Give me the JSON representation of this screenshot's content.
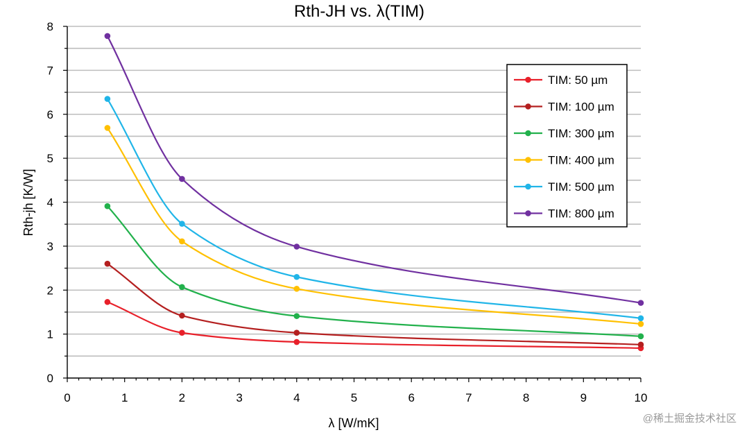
{
  "chart_data": {
    "type": "line",
    "title": "Rth-JH vs. λ(TIM)",
    "xlabel": "λ [W/mK]",
    "ylabel": "Rth-jh [K/W]",
    "xlim": [
      0,
      10
    ],
    "ylim": [
      0,
      8
    ],
    "xticks": [
      "0",
      "1",
      "2",
      "3",
      "4",
      "5",
      "6",
      "7",
      "8",
      "9",
      "10"
    ],
    "yticks": [
      "0",
      "1",
      "2",
      "3",
      "4",
      "5",
      "6",
      "7",
      "8"
    ],
    "grid": "horizontal",
    "legend_position": "top-right",
    "x": [
      0.7,
      2,
      4,
      10
    ],
    "series": [
      {
        "name": "TIM: 50 µm",
        "color": "#e8202a",
        "values": [
          1.73,
          1.03,
          0.82,
          0.68
        ]
      },
      {
        "name": "TIM: 100 µm",
        "color": "#b41f1f",
        "values": [
          2.6,
          1.42,
          1.03,
          0.76
        ]
      },
      {
        "name": "TIM: 300 µm",
        "color": "#22b14c",
        "values": [
          3.91,
          2.07,
          1.41,
          0.95
        ]
      },
      {
        "name": "TIM: 400 µm",
        "color": "#ffc000",
        "values": [
          5.69,
          3.11,
          2.03,
          1.23
        ]
      },
      {
        "name": "TIM: 500 µm",
        "color": "#20b5e8",
        "values": [
          6.35,
          3.51,
          2.3,
          1.36
        ]
      },
      {
        "name": "TIM: 800 µm",
        "color": "#7030a0",
        "values": [
          7.78,
          4.53,
          2.99,
          1.71
        ]
      }
    ]
  },
  "watermark": "@稀土掘金技术社区"
}
